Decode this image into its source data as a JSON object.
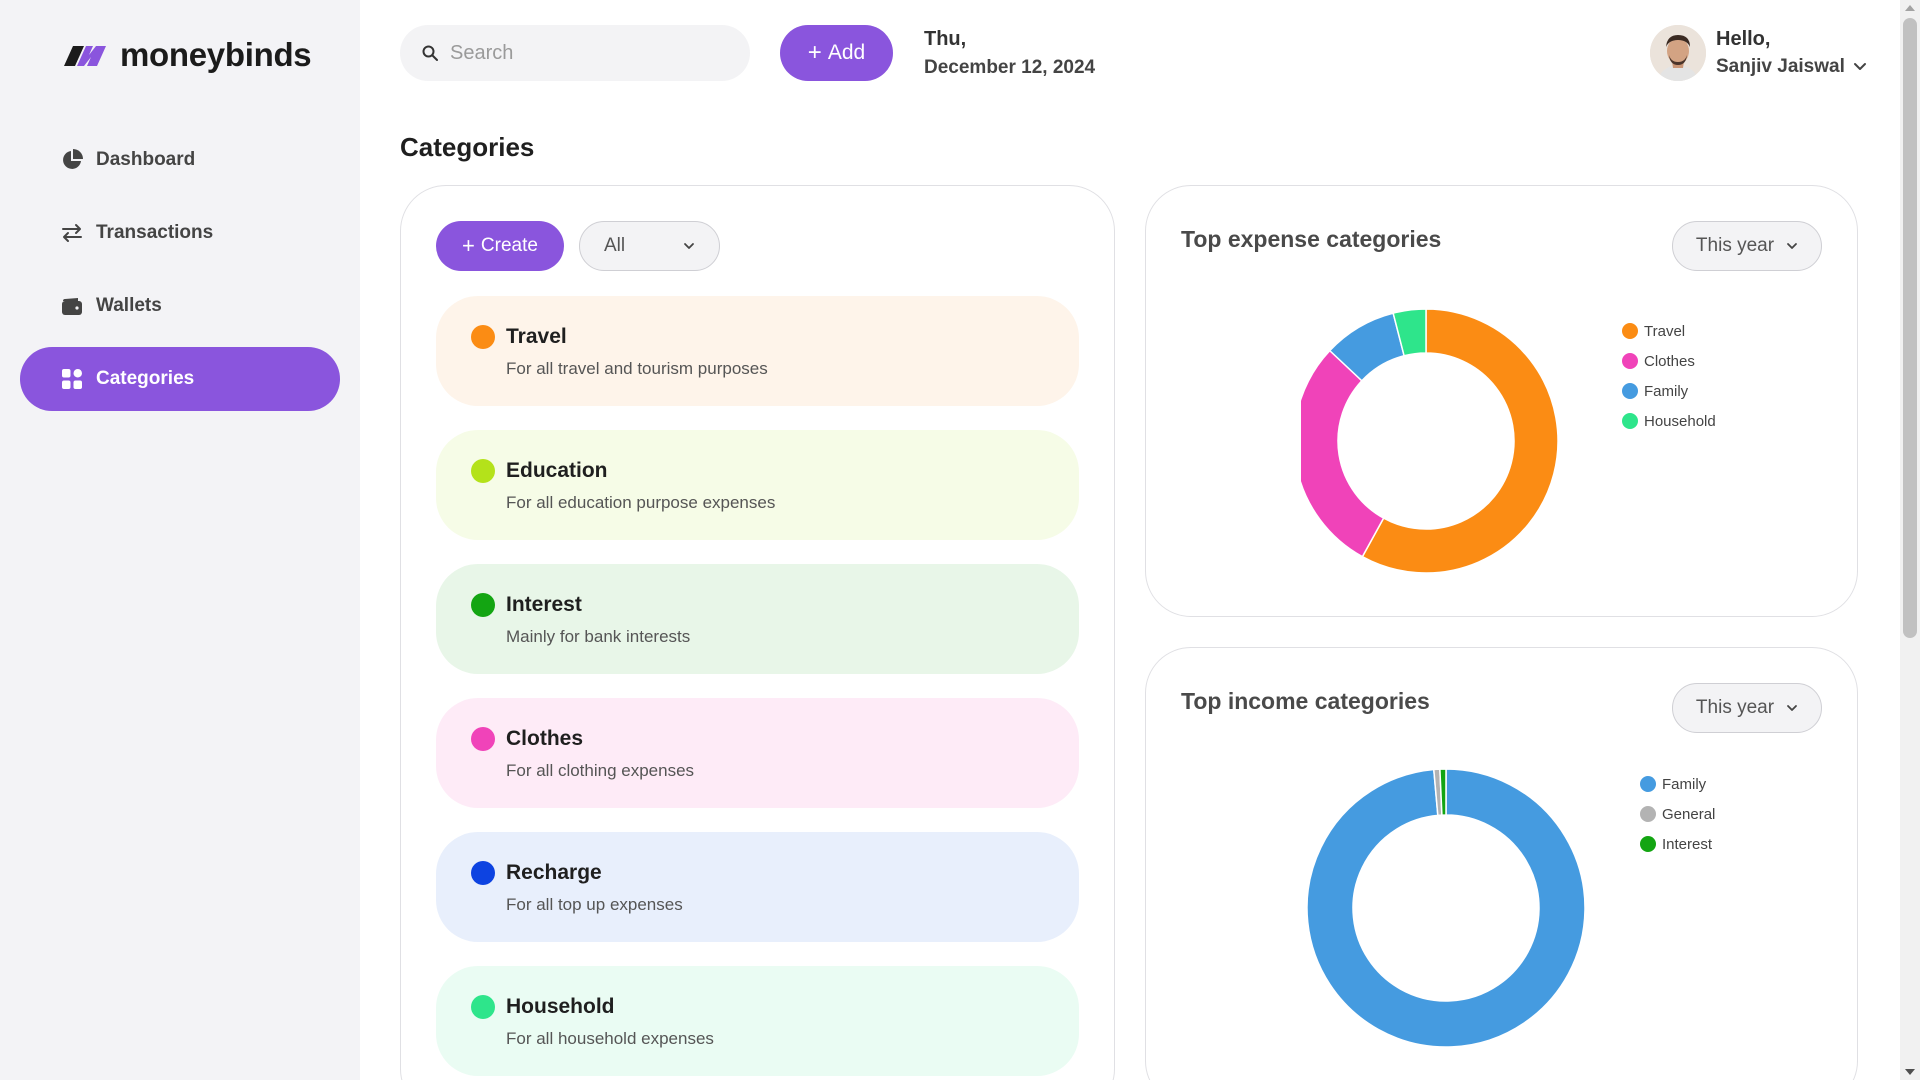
{
  "app": {
    "name": "moneybinds"
  },
  "sidebar": {
    "items": [
      {
        "label": "Dashboard",
        "icon": "pie-chart-icon",
        "active": false
      },
      {
        "label": "Transactions",
        "icon": "transfer-arrows-icon",
        "active": false
      },
      {
        "label": "Wallets",
        "icon": "wallet-icon",
        "active": false
      },
      {
        "label": "Categories",
        "icon": "grid-icon",
        "active": true
      }
    ]
  },
  "header": {
    "search_placeholder": "Search",
    "add_label": "Add",
    "date_day": "Thu,",
    "date_full": "December 12, 2024",
    "greeting": "Hello,",
    "user_name": "Sanjiv Jaiswal"
  },
  "page": {
    "title": "Categories"
  },
  "categories_panel": {
    "create_label": "Create",
    "filter_value": "All",
    "items": [
      {
        "name": "Travel",
        "description": "For all travel and tourism purposes",
        "dot": "#fb8c14",
        "bg": "#fef4ea"
      },
      {
        "name": "Education",
        "description": "For all education purpose expenses",
        "dot": "#b4e21a",
        "bg": "#f6fce7"
      },
      {
        "name": "Interest",
        "description": "Mainly for bank interests",
        "dot": "#13a512",
        "bg": "#e8f6e8"
      },
      {
        "name": "Clothes",
        "description": "For all clothing expenses",
        "dot": "#f043b9",
        "bg": "#feebf7"
      },
      {
        "name": "Recharge",
        "description": "For all top up expenses",
        "dot": "#0d43e1",
        "bg": "#e8effc"
      },
      {
        "name": "Household",
        "description": "For all household expenses",
        "dot": "#2ee58b",
        "bg": "#eafcf3"
      }
    ]
  },
  "expense_chart": {
    "title": "Top expense categories",
    "period": "This year"
  },
  "income_chart": {
    "title": "Top income categories",
    "period": "This year"
  },
  "chart_data": [
    {
      "type": "pie",
      "title": "Top expense categories",
      "categories": [
        "Travel",
        "Clothes",
        "Family",
        "Household"
      ],
      "values": [
        58,
        29,
        9,
        4
      ],
      "colors": [
        "#fb8c14",
        "#f043b9",
        "#459be0",
        "#2ee58b"
      ],
      "legend": "right"
    },
    {
      "type": "pie",
      "title": "Top income categories",
      "categories": [
        "Family",
        "General",
        "Interest"
      ],
      "values": [
        98.6,
        0.7,
        0.7
      ],
      "colors": [
        "#459be0",
        "#b3b3b3",
        "#13a512"
      ],
      "legend": "right"
    }
  ]
}
